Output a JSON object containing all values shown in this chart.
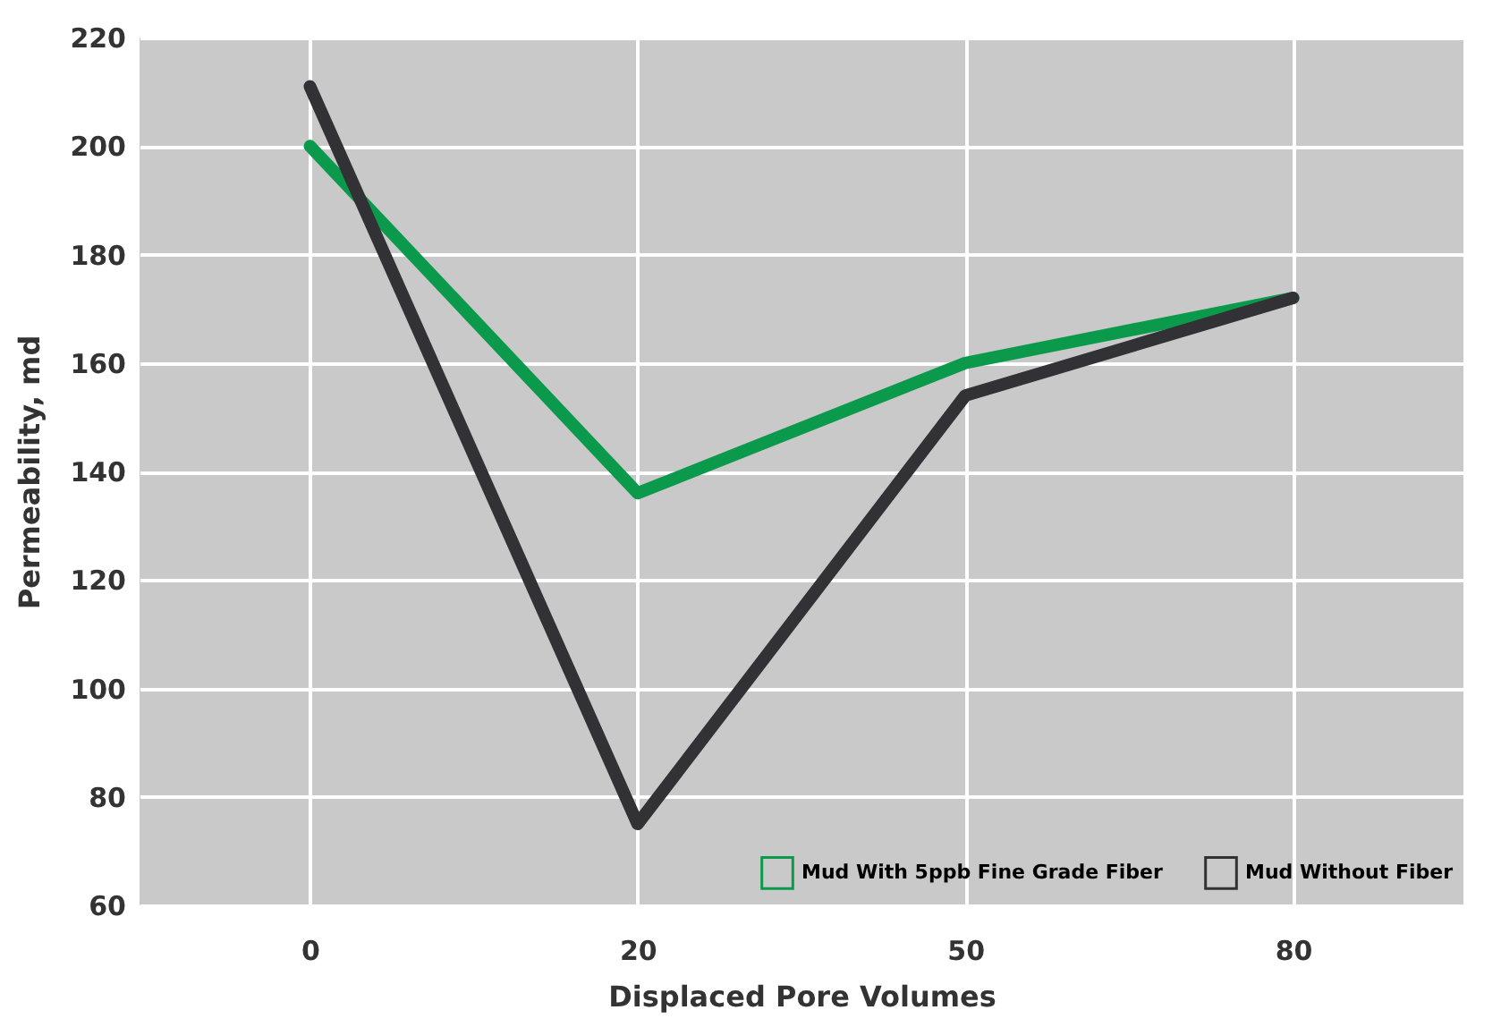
{
  "chart_data": {
    "type": "line",
    "xlabel": "Displaced Pore Volumes",
    "ylabel": "Permeability, md",
    "categories": [
      "0",
      "20",
      "50",
      "80"
    ],
    "series": [
      {
        "name": "Mud With 5ppb Fine Grade Fiber",
        "color": "#0b9a4b",
        "values": [
          200,
          136,
          160,
          172
        ]
      },
      {
        "name": "Mud Without Fiber",
        "color": "#323136",
        "values": [
          211,
          75,
          154,
          172
        ]
      }
    ],
    "ylim": [
      60,
      220
    ],
    "yticks": [
      60,
      80,
      100,
      120,
      140,
      160,
      180,
      200,
      220
    ],
    "grid": true,
    "legend": "bottom right",
    "line_style": "solid"
  }
}
